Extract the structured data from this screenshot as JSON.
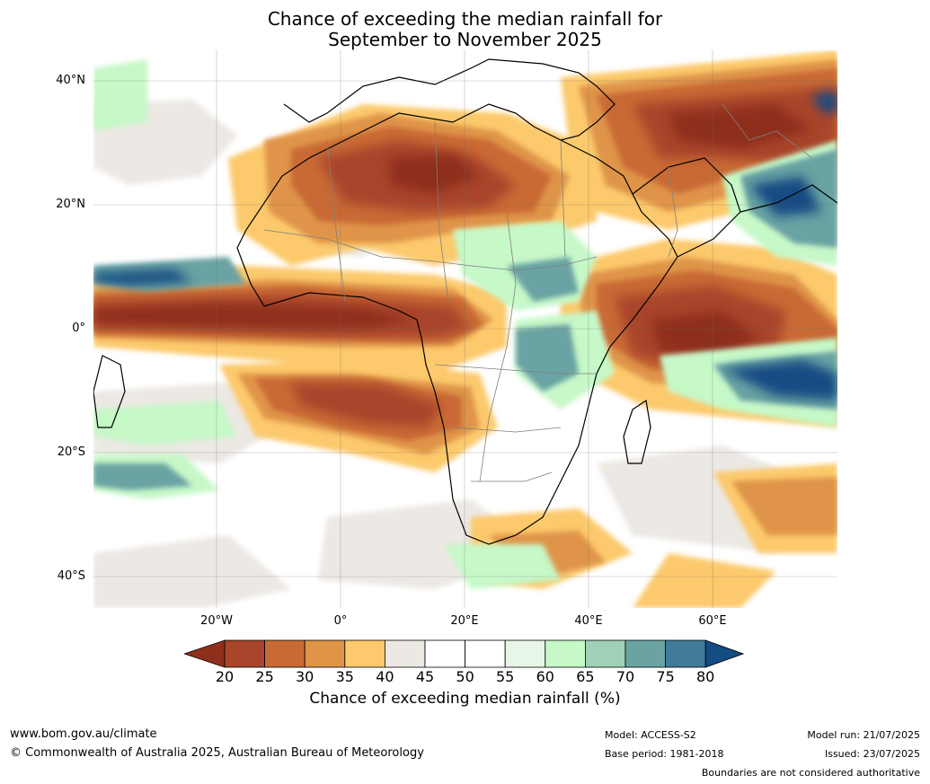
{
  "title": {
    "line1": "Chance of exceeding the median rainfall for",
    "line2": "September to November 2025"
  },
  "map": {
    "region": "Africa",
    "lat_labels": [
      "40°N",
      "20°N",
      "0°",
      "20°S",
      "40°S"
    ],
    "lon_labels": [
      "20°W",
      "0°",
      "20°E",
      "40°E",
      "60°E"
    ],
    "land_color": "#ffffff",
    "coastline_color": "#000000",
    "border_color": "#7f7f7f"
  },
  "legend": {
    "title": "Chance of exceeding median rainfall (%)",
    "ticks": [
      "20",
      "25",
      "30",
      "35",
      "40",
      "45",
      "50",
      "55",
      "60",
      "65",
      "70",
      "75",
      "80"
    ],
    "colors": [
      "#8e2f1c",
      "#a9452a",
      "#c96a35",
      "#df9448",
      "#fcc96c",
      "#ece8e3",
      "#ffffff",
      "#ffffff",
      "#e8f6e8",
      "#c6f8c8",
      "#9fd1b8",
      "#6ba3a3",
      "#427b99",
      "#144c83"
    ]
  },
  "footer": {
    "website": "www.bom.gov.au/climate",
    "copyright": "© Commonwealth of Australia 2025, Australian Bureau of Meteorology",
    "model": "Model: ACCESS-S2",
    "base_period": "Base period: 1981-2018",
    "model_run": "Model run: 21/07/2025",
    "issued": "Issued: 23/07/2025",
    "disclaimer": "Boundaries are not considered authoritative"
  }
}
